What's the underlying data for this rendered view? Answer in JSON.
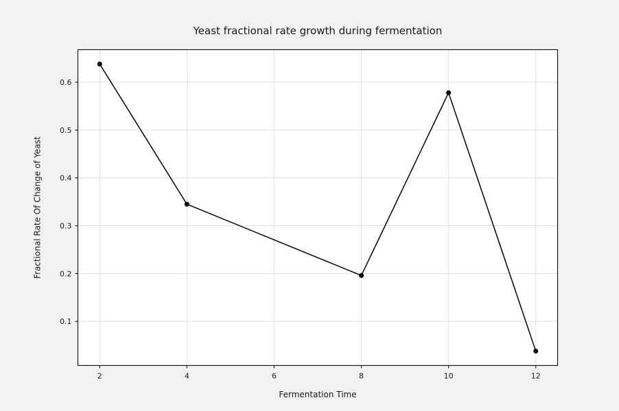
{
  "figure": {
    "background": "#f2f2f2",
    "plot_background": "#ffffff",
    "grid_color": "#e0e0e0",
    "spine_color": "#1a1a1a",
    "text_color": "#1a1a1a",
    "tick_font_size": 11,
    "label_font_size": 12,
    "title_font_size": 15
  },
  "chart_data": {
    "type": "line",
    "title": "Yeast fractional rate growth during fermentation",
    "xlabel": "Fermentation Time",
    "ylabel": "Fractional Rate Of Change of Yeast",
    "x": [
      2,
      4,
      8,
      10,
      12
    ],
    "y": [
      0.638,
      0.345,
      0.196,
      0.578,
      0.038
    ],
    "xlim": [
      1.5,
      12.5
    ],
    "ylim": [
      0.008,
      0.668
    ],
    "xticks": [
      2,
      4,
      6,
      8,
      10,
      12
    ],
    "xtick_labels": [
      "2",
      "4",
      "6",
      "8",
      "10",
      "12"
    ],
    "yticks": [
      0.1,
      0.2,
      0.3,
      0.4,
      0.5,
      0.6
    ],
    "ytick_labels": [
      "0.1",
      "0.2",
      "0.3",
      "0.4",
      "0.5",
      "0.6"
    ],
    "line_color": "#000000",
    "line_width": 1.5,
    "marker": "circle",
    "marker_color": "#000000",
    "marker_radius": 3.5,
    "grid": true,
    "legend": false
  }
}
